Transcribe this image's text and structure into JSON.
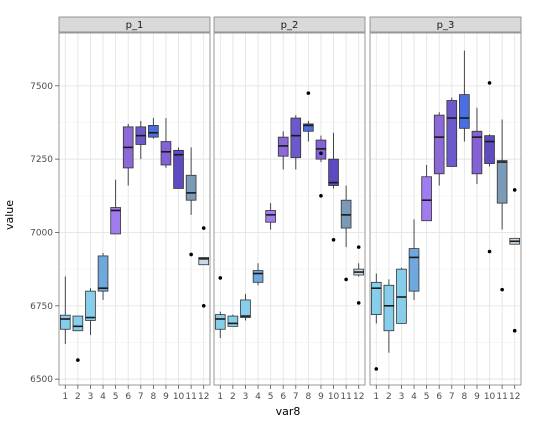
{
  "chart_data": {
    "type": "boxplot",
    "xlabel": "var8",
    "ylabel": "value",
    "ylim": [
      6480,
      7680
    ],
    "yticks": [
      6500,
      6750,
      7000,
      7250,
      7500
    ],
    "ytick_labels": [
      "6500",
      "6750",
      "7000",
      "7250",
      "7500"
    ],
    "categories": [
      "1",
      "2",
      "3",
      "4",
      "5",
      "6",
      "7",
      "8",
      "9",
      "10",
      "11",
      "12"
    ],
    "grid": true,
    "legend": "none",
    "panels": [
      {
        "title": "p_1",
        "boxes": [
          {
            "x": "1",
            "q1": 6670,
            "median": 6705,
            "q3": 6718,
            "low": 6620,
            "high": 6850,
            "fill": "#87CEEB",
            "outliers": []
          },
          {
            "x": "2",
            "q1": 6665,
            "median": 6680,
            "q3": 6715,
            "low": 6665,
            "high": 6715,
            "fill": "#87CEEB",
            "outliers": [
              6565
            ]
          },
          {
            "x": "3",
            "q1": 6700,
            "median": 6710,
            "q3": 6800,
            "low": 6650,
            "high": 6810,
            "fill": "#87CEEB",
            "outliers": []
          },
          {
            "x": "4",
            "q1": 6800,
            "median": 6810,
            "q3": 6920,
            "low": 6770,
            "high": 6930,
            "fill": "#6FA8DC",
            "outliers": []
          },
          {
            "x": "5",
            "q1": 6995,
            "median": 7075,
            "q3": 7085,
            "low": 6995,
            "high": 7180,
            "fill": "#A17CF0",
            "outliers": []
          },
          {
            "x": "6",
            "q1": 7220,
            "median": 7290,
            "q3": 7360,
            "low": 7160,
            "high": 7370,
            "fill": "#8B6AD6",
            "outliers": []
          },
          {
            "x": "7",
            "q1": 7300,
            "median": 7330,
            "q3": 7360,
            "low": 7250,
            "high": 7380,
            "fill": "#6C5ACD",
            "outliers": []
          },
          {
            "x": "8",
            "q1": 7325,
            "median": 7340,
            "q3": 7365,
            "low": 7320,
            "high": 7390,
            "fill": "#4A6FE0",
            "outliers": []
          },
          {
            "x": "9",
            "q1": 7230,
            "median": 7275,
            "q3": 7310,
            "low": 7220,
            "high": 7390,
            "fill": "#8462D6",
            "outliers": []
          },
          {
            "x": "10",
            "q1": 7150,
            "median": 7265,
            "q3": 7280,
            "low": 7150,
            "high": 7290,
            "fill": "#5E4BC2",
            "outliers": []
          },
          {
            "x": "11",
            "q1": 7110,
            "median": 7135,
            "q3": 7195,
            "low": 7060,
            "high": 7290,
            "fill": "#7A9AB8",
            "outliers": [
              6925
            ]
          },
          {
            "x": "12",
            "q1": 6890,
            "median": 6910,
            "q3": 6915,
            "low": 6890,
            "high": 6915,
            "fill": "#C8D8E6",
            "outliers": [
              7015,
              6750
            ]
          }
        ]
      },
      {
        "title": "p_2",
        "boxes": [
          {
            "x": "1",
            "q1": 6670,
            "median": 6705,
            "q3": 6720,
            "low": 6640,
            "high": 6730,
            "fill": "#87CEEB",
            "outliers": [
              6845
            ]
          },
          {
            "x": "2",
            "q1": 6680,
            "median": 6690,
            "q3": 6715,
            "low": 6680,
            "high": 6720,
            "fill": "#87CEEB",
            "outliers": []
          },
          {
            "x": "3",
            "q1": 6710,
            "median": 6715,
            "q3": 6770,
            "low": 6700,
            "high": 6790,
            "fill": "#87CEEB",
            "outliers": []
          },
          {
            "x": "4",
            "q1": 6830,
            "median": 6860,
            "q3": 6870,
            "low": 6820,
            "high": 6895,
            "fill": "#6FA8DC",
            "outliers": []
          },
          {
            "x": "5",
            "q1": 7035,
            "median": 7060,
            "q3": 7075,
            "low": 7010,
            "high": 7100,
            "fill": "#A17CF0",
            "outliers": []
          },
          {
            "x": "6",
            "q1": 7260,
            "median": 7295,
            "q3": 7325,
            "low": 7215,
            "high": 7345,
            "fill": "#8B6AD6",
            "outliers": []
          },
          {
            "x": "7",
            "q1": 7255,
            "median": 7330,
            "q3": 7390,
            "low": 7215,
            "high": 7400,
            "fill": "#6C5ACD",
            "outliers": []
          },
          {
            "x": "8",
            "q1": 7345,
            "median": 7365,
            "q3": 7370,
            "low": 7310,
            "high": 7380,
            "fill": "#4A6FE0",
            "outliers": [
              7475
            ]
          },
          {
            "x": "9",
            "q1": 7250,
            "median": 7285,
            "q3": 7315,
            "low": 7240,
            "high": 7330,
            "fill": "#8462D6",
            "outliers": [
              7270,
              7125
            ]
          },
          {
            "x": "10",
            "q1": 7160,
            "median": 7170,
            "q3": 7250,
            "low": 7150,
            "high": 7340,
            "fill": "#5E4BC2",
            "outliers": [
              6975
            ]
          },
          {
            "x": "11",
            "q1": 7015,
            "median": 7060,
            "q3": 7110,
            "low": 6950,
            "high": 7160,
            "fill": "#7A9AB8",
            "outliers": [
              6840
            ]
          },
          {
            "x": "12",
            "q1": 6855,
            "median": 6865,
            "q3": 6875,
            "low": 6850,
            "high": 6895,
            "fill": "#C8D8E6",
            "outliers": [
              6950,
              6760
            ]
          }
        ]
      },
      {
        "title": "p_3",
        "boxes": [
          {
            "x": "1",
            "q1": 6720,
            "median": 6810,
            "q3": 6830,
            "low": 6690,
            "high": 6860,
            "fill": "#87CEEB",
            "outliers": [
              6535
            ]
          },
          {
            "x": "2",
            "q1": 6665,
            "median": 6750,
            "q3": 6820,
            "low": 6590,
            "high": 6840,
            "fill": "#87CEEB",
            "outliers": []
          },
          {
            "x": "3",
            "q1": 6690,
            "median": 6780,
            "q3": 6875,
            "low": 6690,
            "high": 6880,
            "fill": "#87CEEB",
            "outliers": []
          },
          {
            "x": "4",
            "q1": 6800,
            "median": 6915,
            "q3": 6945,
            "low": 6770,
            "high": 7045,
            "fill": "#6FA8DC",
            "outliers": []
          },
          {
            "x": "5",
            "q1": 7040,
            "median": 7110,
            "q3": 7190,
            "low": 7040,
            "high": 7230,
            "fill": "#A17CF0",
            "outliers": []
          },
          {
            "x": "6",
            "q1": 7200,
            "median": 7325,
            "q3": 7400,
            "low": 7160,
            "high": 7410,
            "fill": "#8B6AD6",
            "outliers": []
          },
          {
            "x": "7",
            "q1": 7225,
            "median": 7390,
            "q3": 7450,
            "low": 7225,
            "high": 7460,
            "fill": "#6C5ACD",
            "outliers": []
          },
          {
            "x": "8",
            "q1": 7355,
            "median": 7390,
            "q3": 7470,
            "low": 7310,
            "high": 7620,
            "fill": "#4A6FE0",
            "outliers": []
          },
          {
            "x": "9",
            "q1": 7200,
            "median": 7325,
            "q3": 7345,
            "low": 7165,
            "high": 7425,
            "fill": "#8462D6",
            "outliers": []
          },
          {
            "x": "10",
            "q1": 7235,
            "median": 7310,
            "q3": 7330,
            "low": 7225,
            "high": 7335,
            "fill": "#5E4BC2",
            "outliers": [
              7510,
              6935
            ]
          },
          {
            "x": "11",
            "q1": 7100,
            "median": 7240,
            "q3": 7245,
            "low": 7010,
            "high": 7385,
            "fill": "#7A9AB8",
            "outliers": [
              6805
            ]
          },
          {
            "x": "12",
            "q1": 6960,
            "median": 6970,
            "q3": 6980,
            "low": 6960,
            "high": 6980,
            "fill": "#C8D8E6",
            "outliers": [
              7145,
              6665
            ]
          }
        ]
      }
    ]
  },
  "colors": {
    "panel_bg": "#ffffff",
    "panel_border": "#7f7f7f",
    "grid": "#e5e5e5",
    "strip_bg": "#d9d9d9",
    "strip_border": "#7f7f7f",
    "box_outline": "#333333",
    "whisker": "#333333",
    "outlier": "#000000"
  }
}
